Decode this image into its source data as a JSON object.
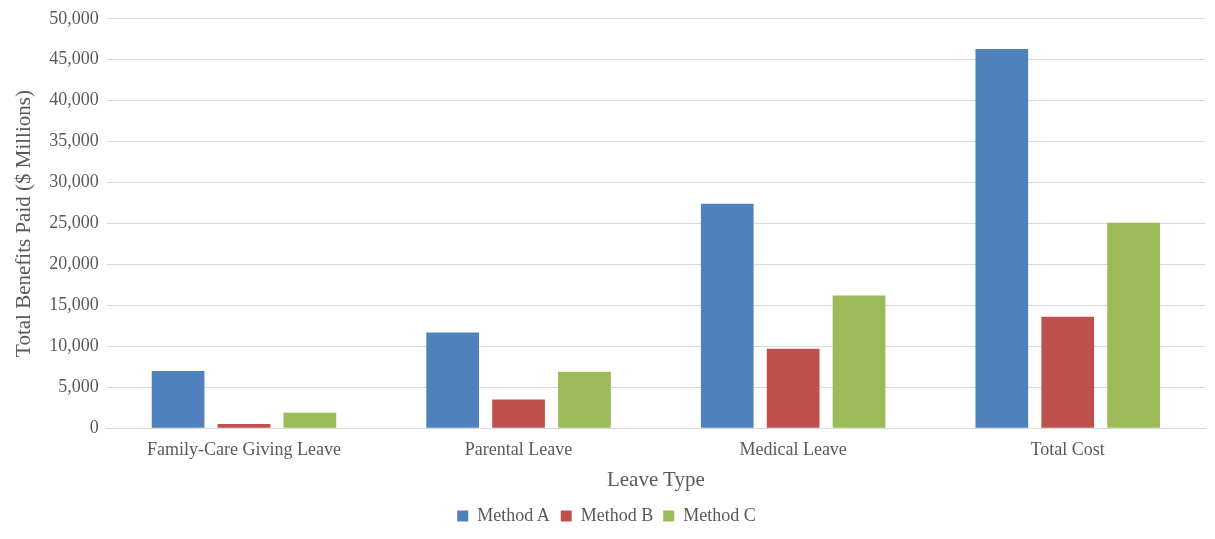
{
  "chart_data": {
    "type": "bar",
    "xlabel": "Leave Type",
    "ylabel": "Total Benefits Paid ($ Millions)",
    "categories": [
      "Family-Care Giving Leave",
      "Parental Leave",
      "Medical Leave",
      "Total Cost"
    ],
    "series": [
      {
        "name": "Method A",
        "color": "#4f81bd",
        "values": [
          7000,
          11700,
          27400,
          46300
        ]
      },
      {
        "name": "Method B",
        "color": "#c0504d",
        "values": [
          500,
          3500,
          9700,
          13600
        ]
      },
      {
        "name": "Method C",
        "color": "#9bbb59",
        "values": [
          1900,
          6900,
          16200,
          25100
        ]
      }
    ],
    "ylim": [
      0,
      50000
    ],
    "yticks": [
      {
        "value": 0,
        "label": "0"
      },
      {
        "value": 5000,
        "label": "5,000"
      },
      {
        "value": 10000,
        "label": "10,000"
      },
      {
        "value": 15000,
        "label": "15,000"
      },
      {
        "value": 20000,
        "label": "20,000"
      },
      {
        "value": 25000,
        "label": "25,000"
      },
      {
        "value": 30000,
        "label": "30,000"
      },
      {
        "value": 35000,
        "label": "35,000"
      },
      {
        "value": 40000,
        "label": "40,000"
      },
      {
        "value": 45000,
        "label": "45,000"
      },
      {
        "value": 50000,
        "label": "50,000"
      }
    ],
    "grid": "y",
    "legend": "bottom"
  }
}
